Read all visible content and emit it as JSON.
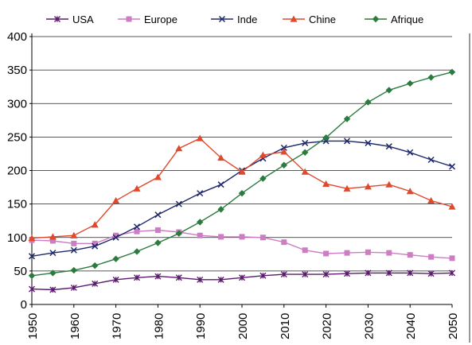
{
  "chart_data": {
    "type": "line",
    "title": "",
    "xlabel": "",
    "ylabel": "",
    "ylim": [
      0,
      400
    ],
    "xlim": [
      1950,
      2050
    ],
    "y_ticks": [
      0,
      50,
      100,
      150,
      200,
      250,
      300,
      350,
      400
    ],
    "x_ticks": [
      1950,
      1960,
      1970,
      1980,
      1990,
      2000,
      2010,
      2020,
      2030,
      2040,
      2050
    ],
    "grid": "horizontal",
    "legend_position": "top",
    "x": [
      1950,
      1955,
      1960,
      1965,
      1970,
      1975,
      1980,
      1985,
      1990,
      1995,
      2000,
      2005,
      2010,
      2015,
      2020,
      2025,
      2030,
      2035,
      2040,
      2045,
      2050
    ],
    "series": [
      {
        "name": "USA",
        "color": "#5b1a6e",
        "marker": "cross",
        "values": [
          23,
          22,
          25,
          31,
          37,
          40,
          42,
          40,
          37,
          37,
          40,
          43,
          45,
          45,
          45,
          46,
          47,
          47,
          47,
          46,
          47
        ]
      },
      {
        "name": "Europe",
        "color": "#cc7dc4",
        "marker": "square",
        "values": [
          96,
          95,
          91,
          91,
          103,
          109,
          111,
          108,
          103,
          101,
          101,
          100,
          93,
          81,
          76,
          77,
          78,
          77,
          74,
          71,
          69
        ]
      },
      {
        "name": "Inde",
        "color": "#1f2a6b",
        "marker": "x",
        "values": [
          72,
          77,
          81,
          87,
          100,
          116,
          134,
          150,
          166,
          179,
          200,
          218,
          234,
          241,
          244,
          244,
          241,
          236,
          227,
          216,
          206
        ]
      },
      {
        "name": "Chine",
        "color": "#e0492b",
        "marker": "triangle",
        "values": [
          99,
          101,
          103,
          119,
          155,
          173,
          190,
          233,
          248,
          219,
          198,
          223,
          228,
          198,
          180,
          173,
          176,
          179,
          169,
          155,
          146
        ]
      },
      {
        "name": "Afrique",
        "color": "#2b7a3e",
        "marker": "diamond",
        "values": [
          43,
          47,
          51,
          58,
          68,
          79,
          92,
          106,
          123,
          142,
          166,
          188,
          208,
          227,
          249,
          277,
          302,
          320,
          330,
          339,
          347
        ]
      }
    ]
  }
}
